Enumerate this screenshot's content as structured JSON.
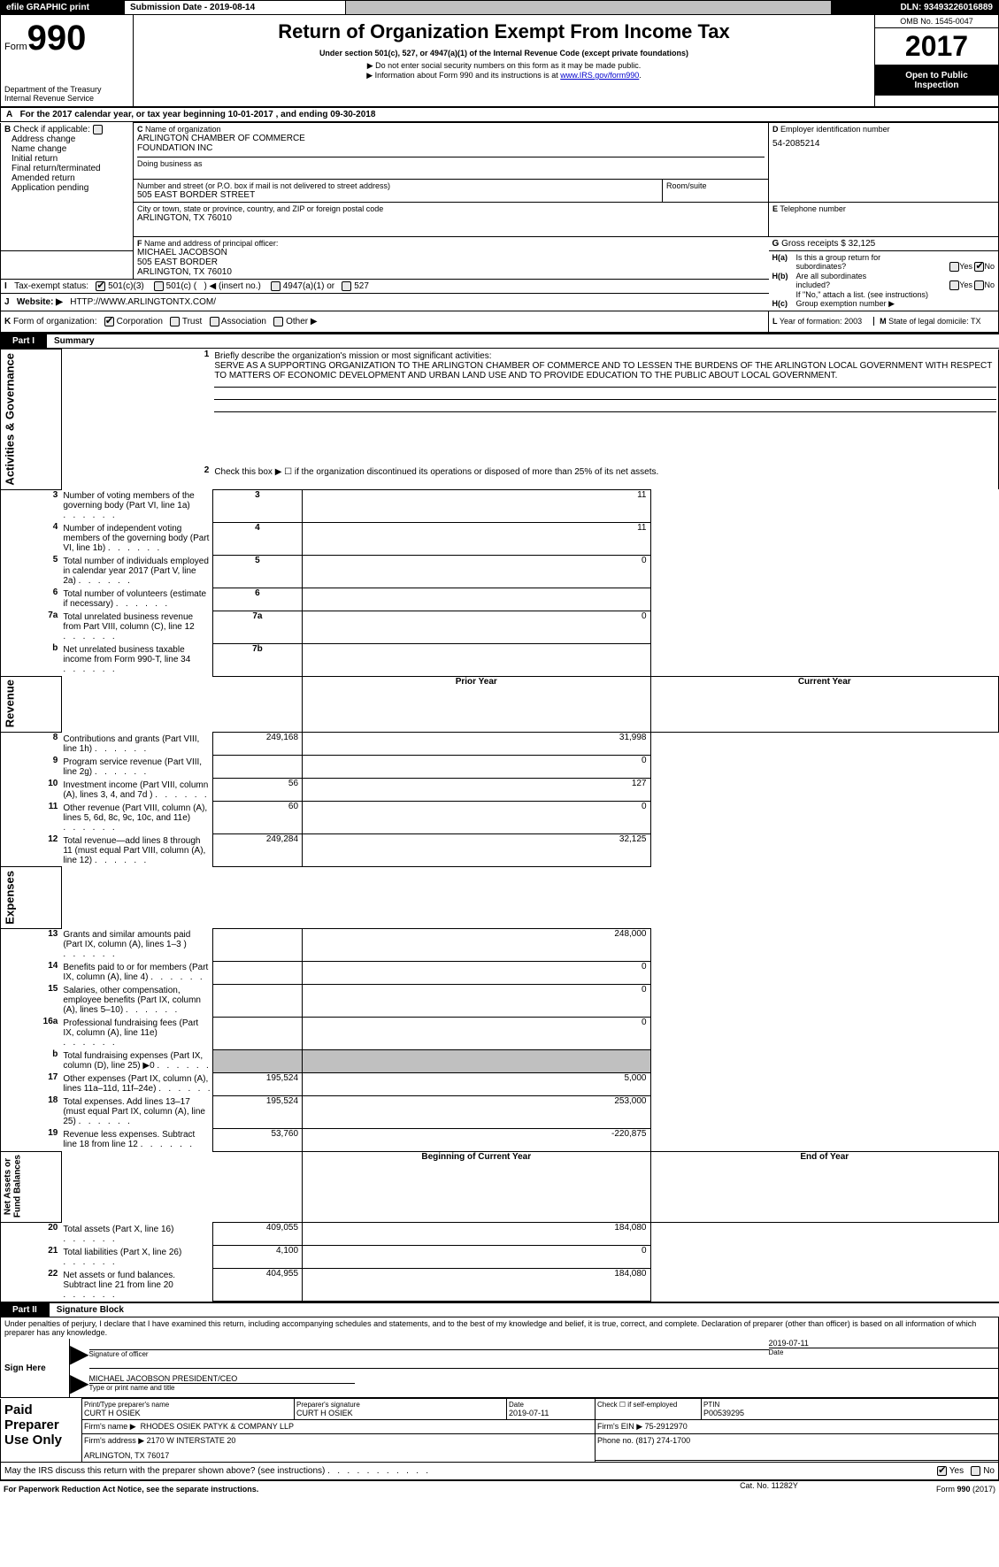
{
  "topbar": {
    "efile": "efile GRAPHIC print",
    "sub_label": "Submission Date - ",
    "sub_date": "2019-08-14",
    "dln_label": "DLN: ",
    "dln": "93493226016889"
  },
  "header": {
    "form_word": "Form",
    "form_num": "990",
    "dept1": "Department of the Treasury",
    "dept2": "Internal Revenue Service",
    "title": "Return of Organization Exempt From Income Tax",
    "subtitle": "Under section 501(c), 527, or 4947(a)(1) of the Internal Revenue Code (except private foundations)",
    "note1": "Do not enter social security numbers on this form as it may be made public.",
    "note2_pre": "Information about Form 990 and its instructions is at ",
    "note2_link": "www.IRS.gov/form990",
    "omb": "OMB No. 1545-0047",
    "year": "2017",
    "open1": "Open to Public",
    "open2": "Inspection"
  },
  "A": {
    "text_pre": "For the 2017 calendar year, or tax year beginning ",
    "begin": "10-01-2017",
    "mid": ", and ending ",
    "end": "09-30-2018"
  },
  "B": {
    "label": "Check if applicable:",
    "opts": [
      "Address change",
      "Name change",
      "Initial return",
      "Final return/terminated",
      "Amended return",
      "Application pending"
    ]
  },
  "C": {
    "name_lbl": "Name of organization",
    "name1": "ARLINGTON CHAMBER OF COMMERCE",
    "name2": "FOUNDATION INC",
    "dba_lbl": "Doing business as",
    "street_lbl": "Number and street (or P.O. box if mail is not delivered to street address)",
    "street": "505 EAST BORDER STREET",
    "room_lbl": "Room/suite",
    "city_lbl": "City or town, state or province, country, and ZIP or foreign postal code",
    "city": "ARLINGTON, TX  76010"
  },
  "D": {
    "lbl": "Employer identification number",
    "val": "54-2085214"
  },
  "E": {
    "lbl": "Telephone number"
  },
  "F": {
    "lbl": "Name and address of principal officer:",
    "name": "MICHAEL JACOBSON",
    "street": "505 EAST BORDER",
    "city": "ARLINGTON, TX  76010"
  },
  "G": {
    "lbl": "Gross receipts $ ",
    "val": "32,125"
  },
  "H": {
    "a1": "Is this a group return for",
    "a2": "subordinates?",
    "b1": "Are all subordinates",
    "b2": "included?",
    "b3": "If \"No,\" attach a list. (see instructions)",
    "c": "Group exemption number ▶",
    "yes": "Yes",
    "no": "No"
  },
  "I": {
    "lbl": "Tax-exempt status:",
    "opt1": "501(c)(3)",
    "opt2_a": "501(c) (",
    "opt2_b": ") ◀ (insert no.)",
    "opt3": "4947(a)(1) or",
    "opt4": "527"
  },
  "J": {
    "lbl": "Website: ▶",
    "val": "HTTP://WWW.ARLINGTONTX.COM/"
  },
  "K": {
    "lbl": "Form of organization:",
    "opts": [
      "Corporation",
      "Trust",
      "Association",
      "Other ▶"
    ]
  },
  "L": {
    "lbl": "Year of formation: ",
    "val": "2003"
  },
  "M": {
    "lbl": "State of legal domicile: ",
    "val": "TX"
  },
  "partI": {
    "part": "Part I",
    "title": "Summary",
    "vert1": "Activities & Governance",
    "vert2": "Revenue",
    "vert3": "Expenses",
    "vert4": "Net Assets or\nFund Balances",
    "line1_lbl": "Briefly describe the organization's mission or most significant activities:",
    "line1_txt": "SERVE AS A SUPPORTING ORGANIZATION TO THE ARLINGTON CHAMBER OF COMMERCE AND TO LESSEN THE BURDENS OF THE ARLINGTON LOCAL GOVERNMENT WITH RESPECT TO MATTERS OF ECONOMIC DEVELOPMENT AND URBAN LAND USE AND TO PROVIDE EDUCATION TO THE PUBLIC ABOUT LOCAL GOVERNMENT.",
    "line2": "Check this box ▶ ☐ if the organization discontinued its operations or disposed of more than 25% of its net assets.",
    "rows_gov": [
      {
        "n": "3",
        "t": "Number of voting members of the governing body (Part VI, line 1a)",
        "box": "3",
        "v": "11"
      },
      {
        "n": "4",
        "t": "Number of independent voting members of the governing body (Part VI, line 1b)",
        "box": "4",
        "v": "11"
      },
      {
        "n": "5",
        "t": "Total number of individuals employed in calendar year 2017 (Part V, line 2a)",
        "box": "5",
        "v": "0"
      },
      {
        "n": "6",
        "t": "Total number of volunteers (estimate if necessary)",
        "box": "6",
        "v": ""
      },
      {
        "n": "7a",
        "t": "Total unrelated business revenue from Part VIII, column (C), line 12",
        "box": "7a",
        "v": "0"
      },
      {
        "n": "b",
        "t": "Net unrelated business taxable income from Form 990-T, line 34",
        "box": "7b",
        "v": ""
      }
    ],
    "col_prior": "Prior Year",
    "col_curr": "Current Year",
    "col_beg": "Beginning of Current Year",
    "col_end": "End of Year",
    "rows_rev": [
      {
        "n": "8",
        "t": "Contributions and grants (Part VIII, line 1h)",
        "p": "249,168",
        "c": "31,998"
      },
      {
        "n": "9",
        "t": "Program service revenue (Part VIII, line 2g)",
        "p": "",
        "c": "0"
      },
      {
        "n": "10",
        "t": "Investment income (Part VIII, column (A), lines 3, 4, and 7d )",
        "p": "56",
        "c": "127"
      },
      {
        "n": "11",
        "t": "Other revenue (Part VIII, column (A), lines 5, 6d, 8c, 9c, 10c, and 11e)",
        "p": "60",
        "c": "0"
      },
      {
        "n": "12",
        "t": "Total revenue—add lines 8 through 11 (must equal Part VIII, column (A), line 12)",
        "p": "249,284",
        "c": "32,125"
      }
    ],
    "rows_exp": [
      {
        "n": "13",
        "t": "Grants and similar amounts paid (Part IX, column (A), lines 1–3 )",
        "p": "",
        "c": "248,000"
      },
      {
        "n": "14",
        "t": "Benefits paid to or for members (Part IX, column (A), line 4)",
        "p": "",
        "c": "0"
      },
      {
        "n": "15",
        "t": "Salaries, other compensation, employee benefits (Part IX, column (A), lines 5–10)",
        "p": "",
        "c": "0"
      },
      {
        "n": "16a",
        "t": "Professional fundraising fees (Part IX, column (A), line 11e)",
        "p": "",
        "c": "0"
      },
      {
        "n": "b",
        "t": "Total fundraising expenses (Part IX, column (D), line 25) ▶0",
        "p": "GREY",
        "c": "GREY"
      },
      {
        "n": "17",
        "t": "Other expenses (Part IX, column (A), lines 11a–11d, 11f–24e)",
        "p": "195,524",
        "c": "5,000"
      },
      {
        "n": "18",
        "t": "Total expenses. Add lines 13–17 (must equal Part IX, column (A), line 25)",
        "p": "195,524",
        "c": "253,000"
      },
      {
        "n": "19",
        "t": "Revenue less expenses. Subtract line 18 from line 12",
        "p": "53,760",
        "c": "-220,875"
      }
    ],
    "rows_net": [
      {
        "n": "20",
        "t": "Total assets (Part X, line 16)",
        "p": "409,055",
        "c": "184,080"
      },
      {
        "n": "21",
        "t": "Total liabilities (Part X, line 26)",
        "p": "4,100",
        "c": "0"
      },
      {
        "n": "22",
        "t": "Net assets or fund balances. Subtract line 21 from line 20",
        "p": "404,955",
        "c": "184,080"
      }
    ]
  },
  "partII": {
    "part": "Part II",
    "title": "Signature Block",
    "perjury": "Under penalties of perjury, I declare that I have examined this return, including accompanying schedules and statements, and to the best of my knowledge and belief, it is true, correct, and complete. Declaration of preparer (other than officer) is based on all information of which preparer has any knowledge.",
    "sign_here": "Sign Here",
    "sig_officer": "Signature of officer",
    "date": "Date",
    "sig_date": "2019-07-11",
    "name_title": "MICHAEL JACOBSON  PRESIDENT/CEO",
    "type_name": "Type or print name and title",
    "paid": "Paid\nPreparer\nUse Only",
    "prep_name_lbl": "Print/Type preparer's name",
    "prep_name": "CURT H OSIEK",
    "prep_sig_lbl": "Preparer's signature",
    "prep_sig": "CURT H OSIEK",
    "prep_date_lbl": "Date",
    "prep_date": "2019-07-11",
    "check_lbl": "Check ☐ if self-employed",
    "ptin_lbl": "PTIN",
    "ptin": "P00539295",
    "firm_name_lbl": "Firm's name   ▶",
    "firm_name": "RHODES OSIEK PATYK & COMPANY LLP",
    "firm_ein_lbl": "Firm's EIN ▶",
    "firm_ein": "75-2912970",
    "firm_addr_lbl": "Firm's address ▶",
    "firm_addr1": "2170 W INTERSTATE 20",
    "firm_addr2": "ARLINGTON, TX  76017",
    "phone_lbl": "Phone no. ",
    "phone": "(817) 274-1700",
    "discuss": "May the IRS discuss this return with the preparer shown above? (see instructions)",
    "yes": "Yes",
    "no": "No"
  },
  "footer": {
    "left": "For Paperwork Reduction Act Notice, see the separate instructions.",
    "mid": "Cat. No. 11282Y",
    "right": "Form 990 (2017)",
    "form_bold": "990"
  }
}
